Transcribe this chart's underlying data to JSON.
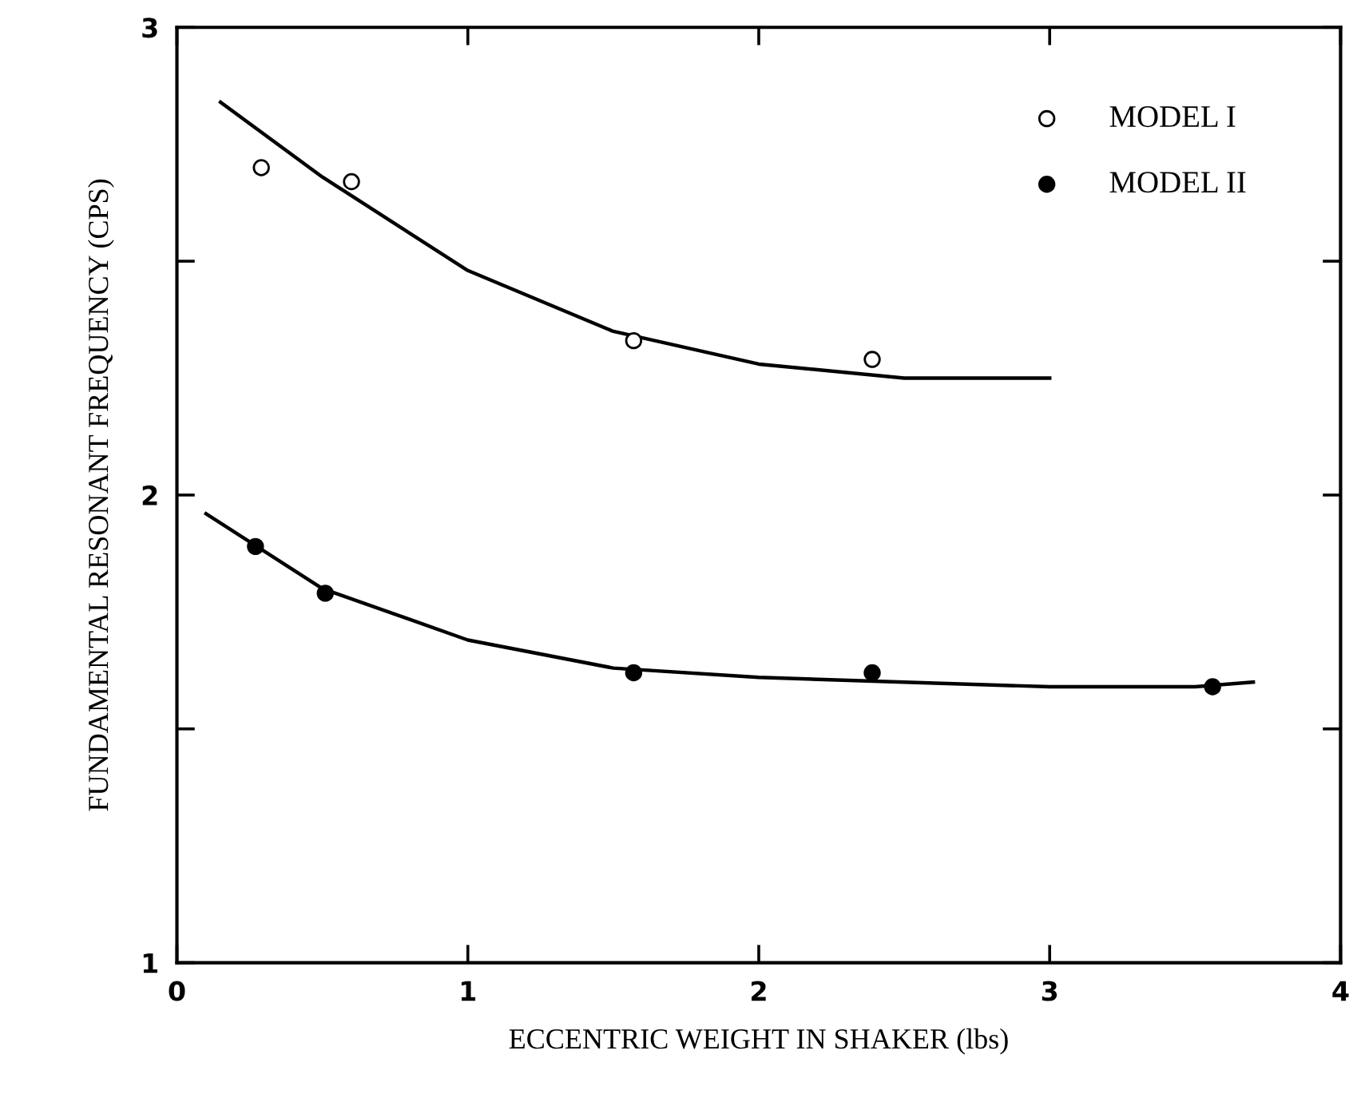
{
  "chart_data": {
    "type": "scatter",
    "xlabel": "ECCENTRIC WEIGHT IN SHAKER (lbs)",
    "ylabel": "FUNDAMENTAL RESONANT FREQUENCY (CPS)",
    "xlim": [
      0,
      4
    ],
    "ylim": [
      1,
      3
    ],
    "xticks": [
      0,
      1,
      2,
      3,
      4
    ],
    "yticks": [
      1,
      {
        "value": 1.5,
        "label": null
      },
      2,
      {
        "value": 2.5,
        "label": null
      },
      3
    ],
    "grid": false,
    "legend": "top right",
    "series": [
      {
        "name": "MODEL I",
        "marker": "circle",
        "color": "#ffffff",
        "x": [
          0.29,
          0.6,
          1.57,
          2.39
        ],
        "values": [
          2.7,
          2.67,
          2.33,
          2.29
        ]
      },
      {
        "name": "MODEL II",
        "marker": "circle",
        "color": "#000000",
        "x": [
          0.27,
          0.51,
          1.57,
          2.39,
          3.56
        ],
        "values": [
          1.89,
          1.79,
          1.62,
          1.62,
          1.59
        ]
      },
      {
        "type": "line",
        "marker": "none",
        "color": "#000000",
        "x": [
          0.15,
          0.5,
          1.0,
          1.5,
          2.0,
          2.5,
          3.0
        ],
        "values": [
          2.84,
          2.68,
          2.48,
          2.35,
          2.28,
          2.25,
          2.25
        ]
      },
      {
        "type": "line",
        "marker": "none",
        "color": "#000000",
        "x": [
          0.1,
          0.5,
          1.0,
          1.5,
          2.0,
          2.5,
          3.0,
          3.5,
          3.7
        ],
        "values": [
          1.96,
          1.8,
          1.69,
          1.63,
          1.61,
          1.6,
          1.59,
          1.59,
          1.6
        ]
      }
    ]
  }
}
